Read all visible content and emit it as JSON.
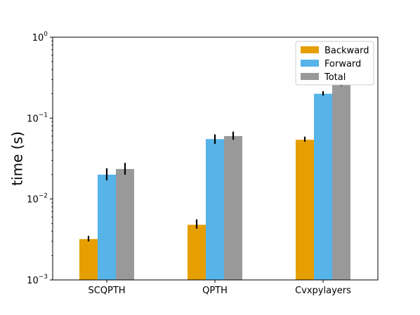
{
  "chart_data": {
    "type": "bar",
    "ylabel": "time (s)",
    "yscale": "log",
    "ylim": [
      0.001,
      1
    ],
    "yticks": [
      {
        "value": 0.001,
        "base": "10",
        "exp": "−3"
      },
      {
        "value": 0.01,
        "base": "10",
        "exp": "−2"
      },
      {
        "value": 0.1,
        "base": "10",
        "exp": "−1"
      },
      {
        "value": 1,
        "base": "10",
        "exp": "0"
      }
    ],
    "categories": [
      "SCQPTH",
      "QPTH",
      "Cvxpylayers"
    ],
    "series": [
      {
        "name": "Backward",
        "color": "#E69F00",
        "values": [
          0.0032,
          0.0048,
          0.054
        ],
        "err_low": [
          0.003,
          0.0043,
          0.051
        ],
        "err_high": [
          0.0035,
          0.0056,
          0.059
        ]
      },
      {
        "name": "Forward",
        "color": "#56B4E9",
        "values": [
          0.02,
          0.055,
          0.2
        ],
        "err_low": [
          0.017,
          0.048,
          0.19
        ],
        "err_high": [
          0.024,
          0.063,
          0.215
        ]
      },
      {
        "name": "Total",
        "color": "#999999",
        "values": [
          0.0235,
          0.06,
          0.26
        ],
        "err_low": [
          0.02,
          0.054,
          0.25
        ],
        "err_high": [
          0.028,
          0.068,
          0.275
        ]
      }
    ],
    "legend_position": "top-right",
    "grid": false
  }
}
